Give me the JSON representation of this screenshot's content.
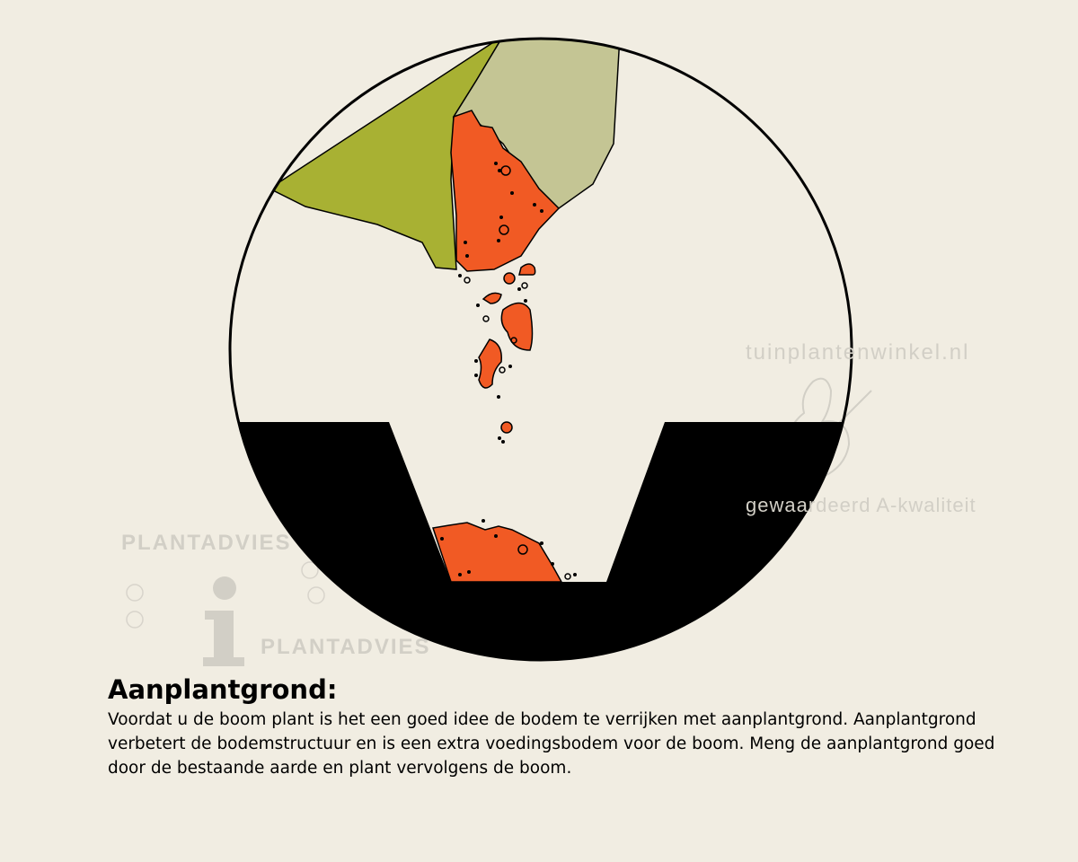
{
  "caption": {
    "title": "Aanplantgrond:",
    "body": "Voordat u de boom plant is het een goed idee de bodem te verrijken met aanplantgrond. Aanplantgrond verbetert de bodemstructuur en is een extra voedingsbodem voor de boom. Meng de aanplantgrond goed door de bestaande aarde en plant vervolgens de boom."
  },
  "watermarks": {
    "left_top": "PLANTADVIES",
    "left_bottom": "PLANTADVIES",
    "left_icon": "info-icon",
    "right_top": "tuinplantenwinkel.nl",
    "right_bottom": "gewaardeerd A-kwaliteit",
    "right_icon": "thumbs-up-icon"
  },
  "colors": {
    "background": "#f1ede2",
    "soil": "#000000",
    "planting_soil": "#f15a24",
    "bag_green": "#a8b133",
    "bag_light": "#c4c594"
  }
}
